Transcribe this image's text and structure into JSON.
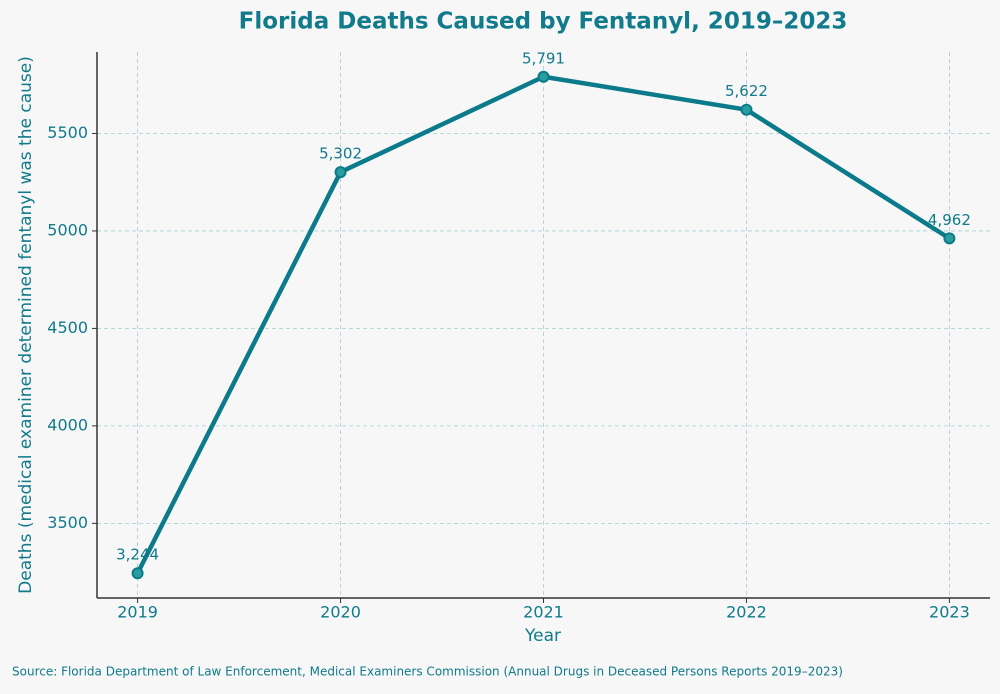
{
  "chart_data": {
    "type": "line",
    "title": "Florida Deaths Caused by Fentanyl, 2019–2023",
    "x_label": "Year",
    "y_label": "Deaths (medical examiner determined fentanyl was the cause)",
    "source": "Source: Florida Department of Law Enforcement, Medical Examiners Commission (Annual Drugs in Deceased Persons Reports 2019–2023)",
    "x": [
      2019,
      2020,
      2021,
      2022,
      2023
    ],
    "values": [
      3244,
      5302,
      5791,
      5622,
      4962
    ],
    "value_labels": [
      "3,244",
      "5,302",
      "5,791",
      "5,622",
      "4,962"
    ],
    "color": "#0b7a8a",
    "xlim": [
      2018.8,
      2023.2
    ],
    "xticks": [
      2019,
      2020,
      2021,
      2022,
      2023
    ],
    "ylim": [
      3117,
      5918
    ],
    "yticks": [
      3500,
      4000,
      4500,
      5000,
      5500
    ],
    "grid": true
  }
}
